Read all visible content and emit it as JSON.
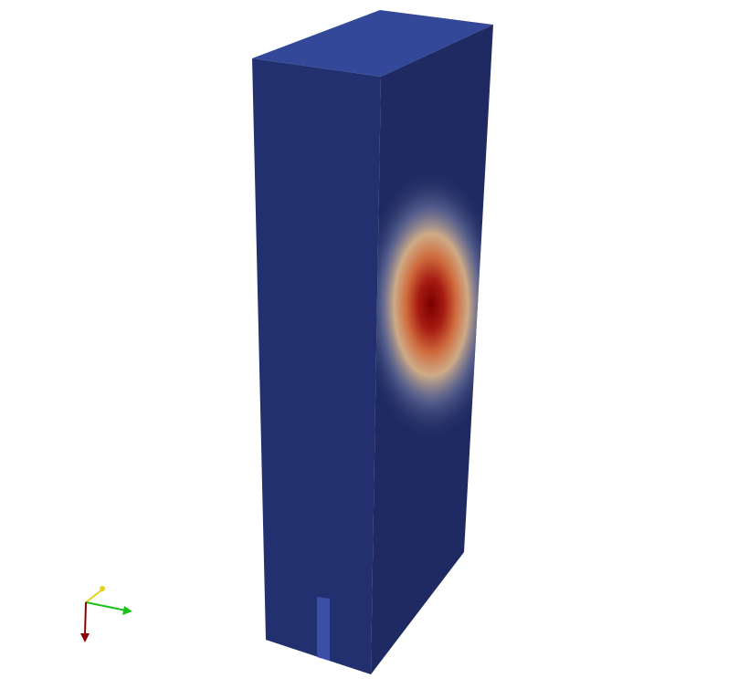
{
  "colors": {
    "background": "#ffffff",
    "front_face": "#23306f",
    "side_face": "#1f2a62",
    "top_face": "#34489a",
    "inlet_strip": "#3a4ea8",
    "hot_core": "#8b0000",
    "warm": "#c84a2a",
    "cool": "#d9c9b0",
    "axis_x": "#8b0000",
    "axis_y": "#19c119",
    "axis_z": "#e6d21a"
  },
  "axes_widget": {
    "x_color_name": "red",
    "y_color_name": "green",
    "z_color_name": "yellow"
  }
}
